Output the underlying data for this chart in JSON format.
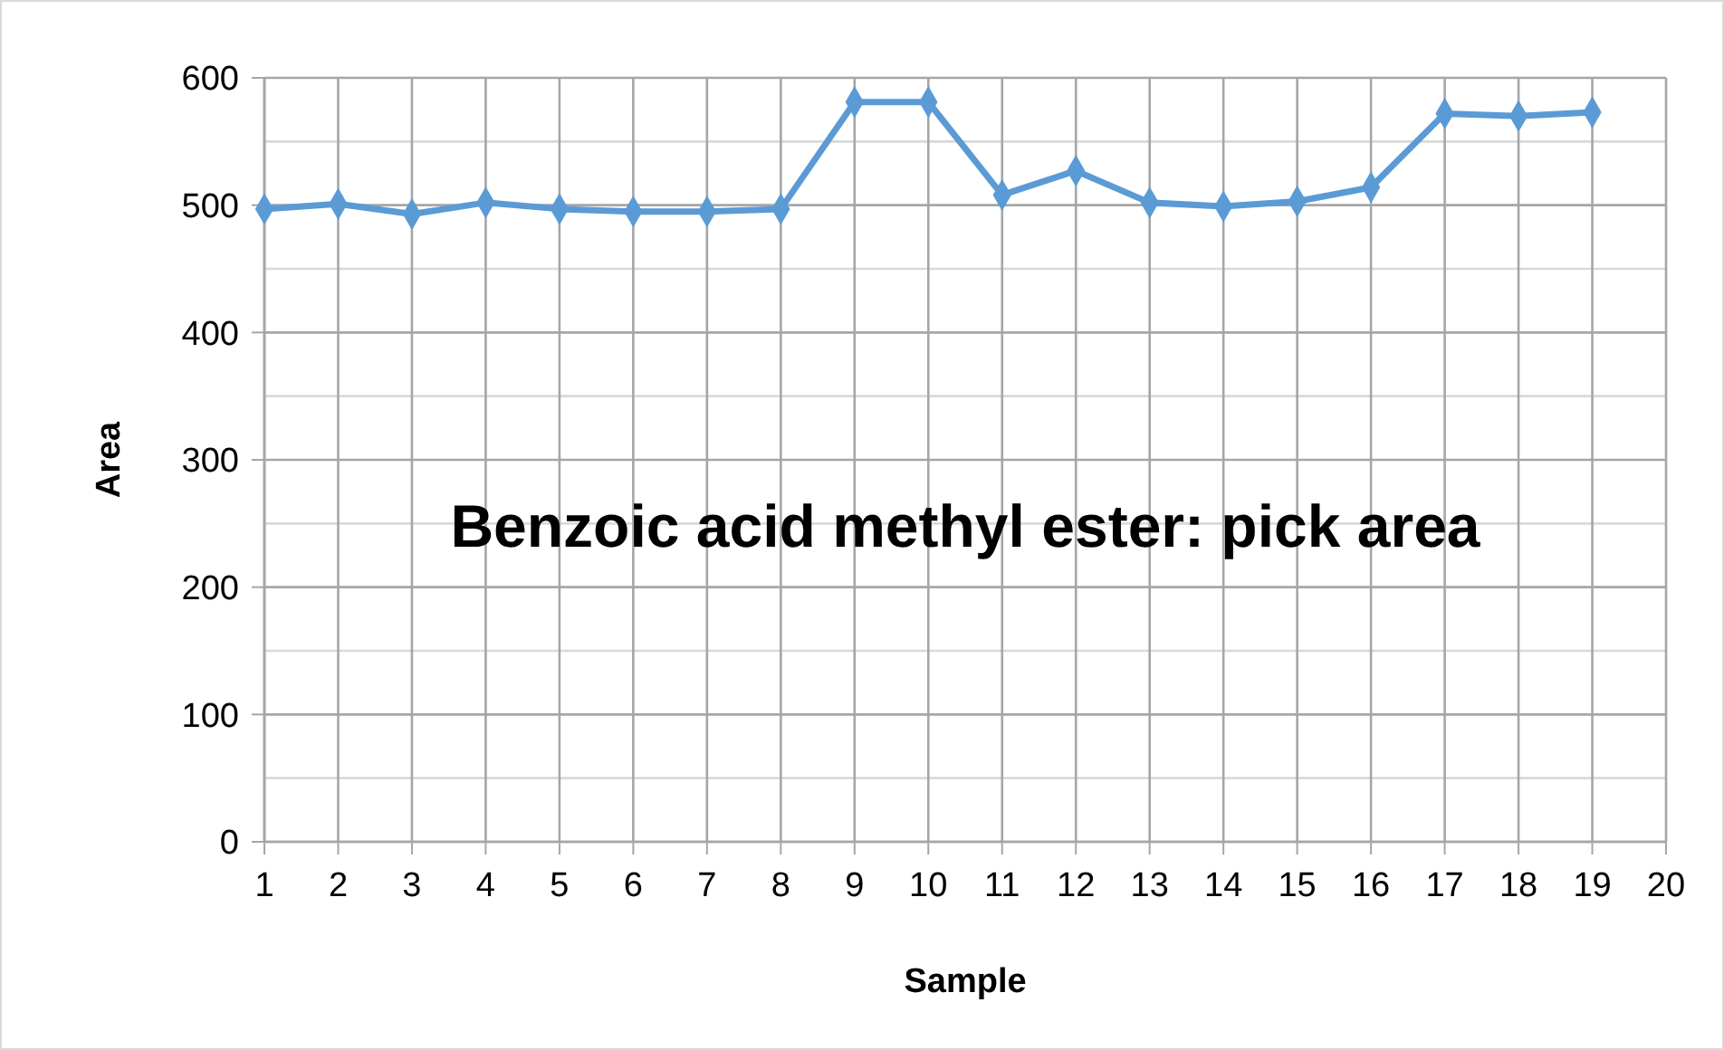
{
  "chart_data": {
    "type": "line",
    "title": "Benzoic acid methyl ester: pick area",
    "xlabel": "Sample",
    "ylabel": "Area",
    "x": [
      1,
      2,
      3,
      4,
      5,
      6,
      7,
      8,
      9,
      10,
      11,
      12,
      13,
      14,
      15,
      16,
      17,
      18,
      19
    ],
    "series": [
      {
        "color": "#5b9bd5",
        "values": [
          497,
          501,
          493,
          502,
          497,
          495,
          495,
          497,
          581,
          581,
          508,
          527,
          502,
          499,
          503,
          514,
          572,
          570,
          573
        ]
      }
    ],
    "xlim": [
      1,
      20
    ],
    "xticks": [
      1,
      2,
      3,
      4,
      5,
      6,
      7,
      8,
      9,
      10,
      11,
      12,
      13,
      14,
      15,
      16,
      17,
      18,
      19,
      20
    ],
    "ylim": [
      0,
      600
    ],
    "yticks": [
      0,
      {
        "value": 50,
        "label": null
      },
      100,
      {
        "value": 150,
        "label": null
      },
      200,
      {
        "value": 250,
        "label": null
      },
      300,
      {
        "value": 350,
        "label": null
      },
      400,
      {
        "value": 450,
        "label": null
      },
      500,
      {
        "value": 550,
        "label": null
      },
      600
    ],
    "grid": true,
    "marker": "diamond",
    "line_style": "solid"
  }
}
